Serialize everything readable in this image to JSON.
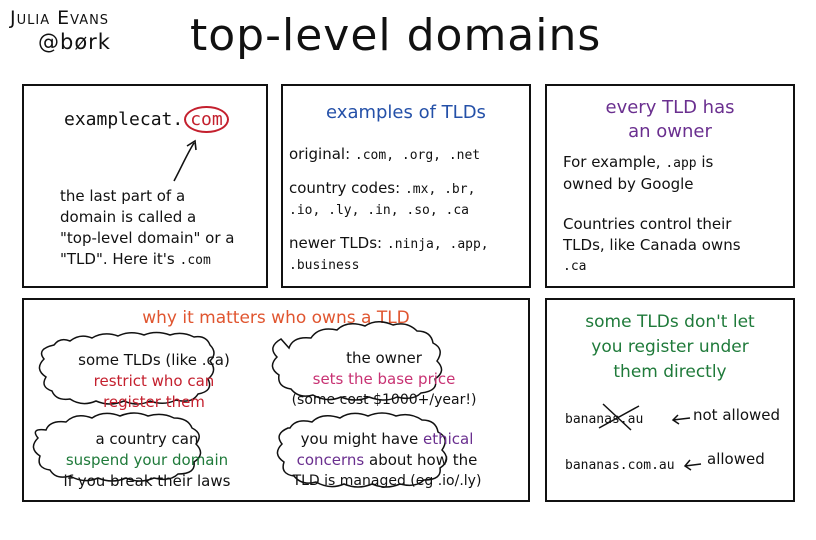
{
  "author": {
    "name": "Julia Evans",
    "handle": "@børk"
  },
  "title": "top-level domains",
  "panel_domain": {
    "domain_prefix": "examplecat.",
    "domain_tld": "com",
    "lines": [
      "the last part of a",
      "domain is called a",
      "\"top-level domain\" or a"
    ],
    "last_line_text": "\"TLD\". Here it's ",
    "last_line_code": ".com"
  },
  "panel_examples": {
    "heading": "examples of TLDs",
    "original_label": "original:",
    "original_values": ".com, .org, .net",
    "country_label": "country codes:",
    "country_values_1": ".mx, .br,",
    "country_values_2": ".io, .ly, .in, .so, .ca",
    "newer_label": "newer TLDs:",
    "newer_values_1": ".ninja, .app,",
    "newer_values_2": ".business"
  },
  "panel_owner": {
    "heading_1": "every TLD has",
    "heading_2": "an owner",
    "line1_text": "For example, ",
    "line1_code": ".app",
    "line1_end": " is",
    "line2": "owned by Google",
    "line3": "Countries control their",
    "line4": "TLDs, like Canada owns",
    "line5_code": ".ca"
  },
  "panel_why": {
    "heading": "why it matters who owns a TLD",
    "cloud1": {
      "line1": "some TLDs (like .ca)",
      "line2": "restrict who can",
      "line3": "register them"
    },
    "cloud2": {
      "line1": "the owner",
      "line2": "sets the base price",
      "line3": "(some cost $1000+/year!)"
    },
    "cloud3": {
      "line1": "a country can",
      "line2": "suspend your domain",
      "line3": "if you break their laws"
    },
    "cloud4": {
      "line1_a": "you might have ",
      "line1_b": "ethical",
      "line2_a": "concerns",
      "line2_b": " about how the",
      "line3": "TLD is managed (eg .io/.ly)"
    }
  },
  "panel_register": {
    "heading_1": "some TLDs don't let",
    "heading_2": "you register under",
    "heading_3": "them directly",
    "example1": "bananas.au",
    "example1_note": "not allowed",
    "example2": "bananas.com.au",
    "example2_note": "allowed"
  },
  "colors": {
    "blue": "#2450a8",
    "purple": "#6a2f8f",
    "orange": "#e0552f",
    "red": "#c4202e",
    "green": "#1f7a3a",
    "pink": "#c83273"
  }
}
